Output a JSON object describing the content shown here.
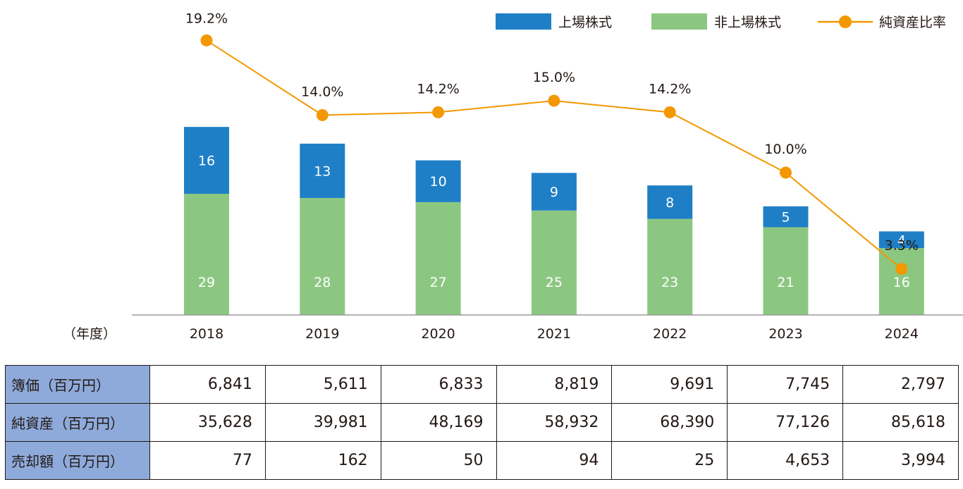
{
  "chart_data": {
    "type": "bar",
    "stacked": true,
    "categories": [
      "2018",
      "2019",
      "2020",
      "2021",
      "2022",
      "2023",
      "2024"
    ],
    "x_unit_label": "（年度）",
    "series": [
      {
        "name": "上場株式",
        "color": "#1f7fc6",
        "values": [
          16,
          13,
          10,
          9,
          8,
          5,
          4
        ],
        "value_labels": [
          "16",
          "13",
          "10",
          "9",
          "8",
          "5",
          "4"
        ]
      },
      {
        "name": "非上場株式",
        "color": "#8cc782",
        "values": [
          29,
          28,
          27,
          25,
          23,
          21,
          16
        ],
        "value_labels": [
          "29",
          "28",
          "27",
          "25",
          "23",
          "21",
          "16"
        ]
      }
    ],
    "line_series": {
      "name": "純資産比率",
      "color": "#f39800",
      "unit": "%",
      "values": [
        19.2,
        14.0,
        14.2,
        15.0,
        14.2,
        10.0,
        3.3
      ],
      "value_labels": [
        "19.2%",
        "14.0%",
        "14.2%",
        "15.0%",
        "14.2%",
        "10.0%",
        "3.3%"
      ]
    },
    "bar_ylim": [
      0,
      45
    ],
    "line_ylim": [
      0,
      20
    ],
    "legend_position": "top-right",
    "grid": false
  },
  "table": {
    "rows": [
      {
        "label": "簿価（百万円）",
        "values": [
          "6,841",
          "5,611",
          "6,833",
          "8,819",
          "9,691",
          "7,745",
          "2,797"
        ]
      },
      {
        "label": "純資産（百万円）",
        "values": [
          "35,628",
          "39,981",
          "48,169",
          "58,932",
          "68,390",
          "77,126",
          "85,618"
        ]
      },
      {
        "label": "売却額（百万円）",
        "values": [
          "77",
          "162",
          "50",
          "94",
          "25",
          "4,653",
          "3,994"
        ]
      }
    ]
  }
}
